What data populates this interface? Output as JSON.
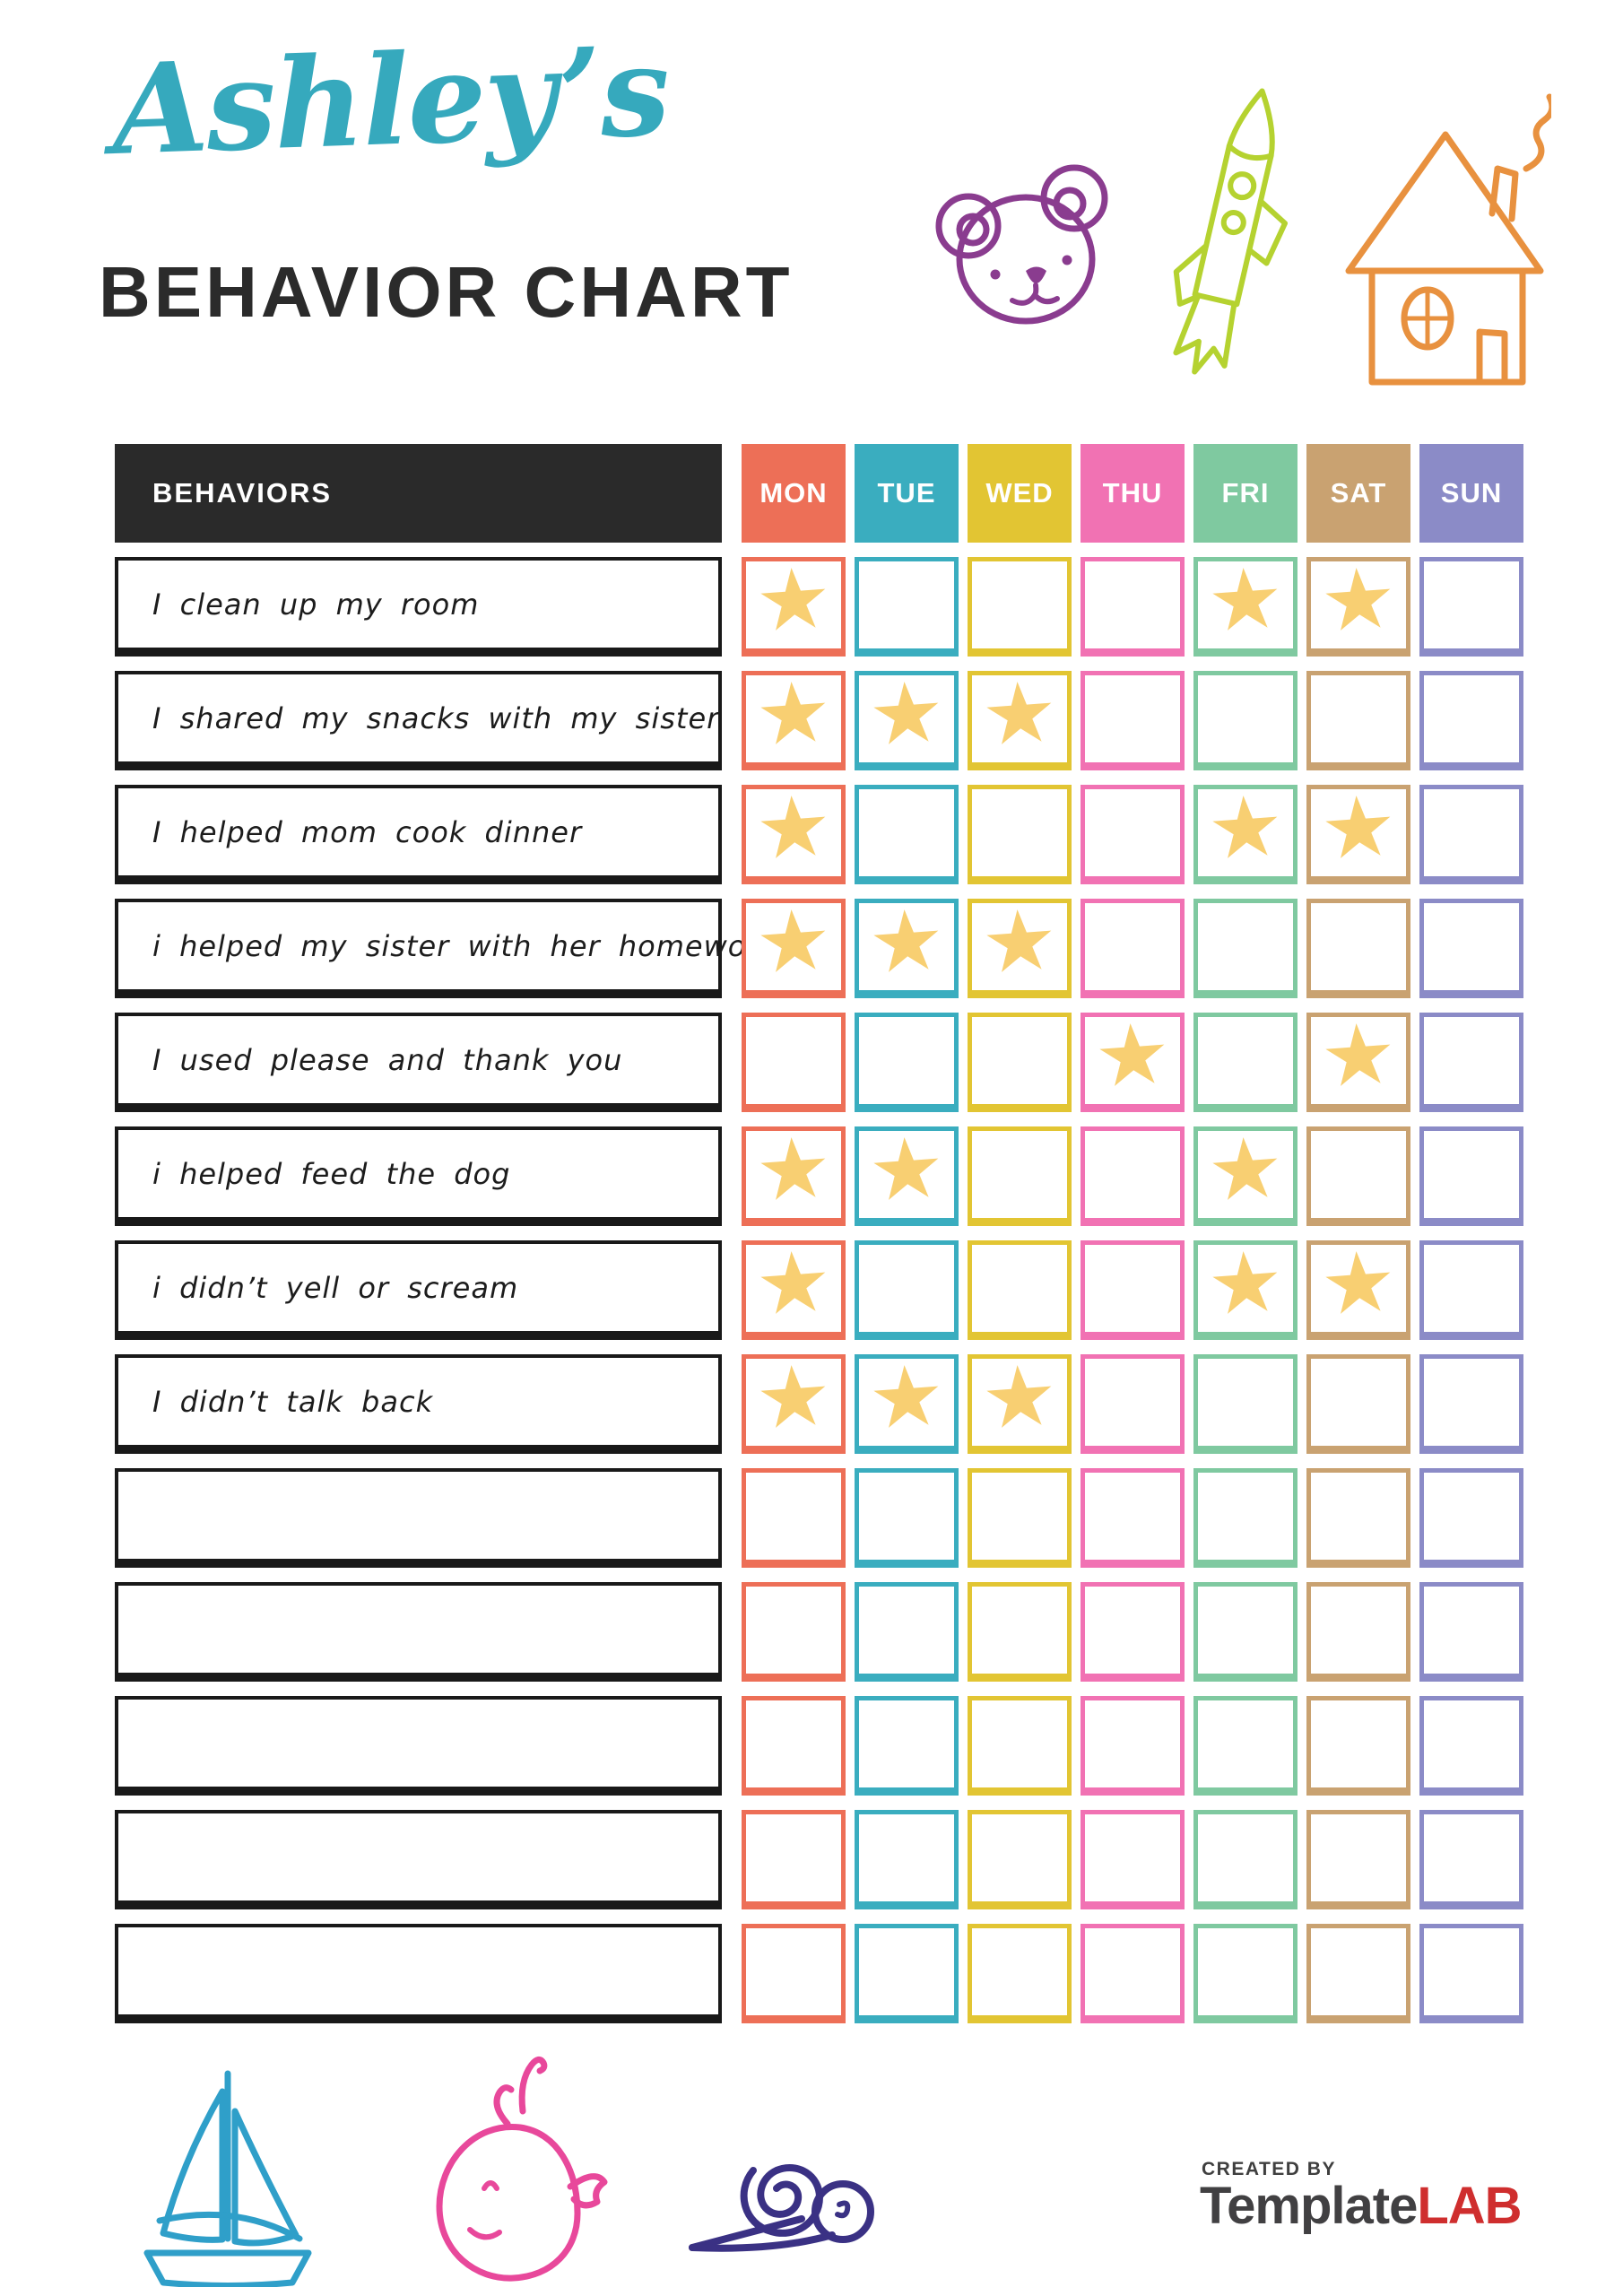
{
  "header": {
    "script_title": "Ashley’s",
    "script_color": "#36a9bd",
    "main_title": "BEHAVIOR CHART",
    "main_color": "#2b2b2b"
  },
  "chart": {
    "behaviors_header": "BEHAVIORS",
    "behaviors_header_bg": "#2a2a2a",
    "star_glyph": "★",
    "star_color": "#f8cf72",
    "days": [
      {
        "label": "MON",
        "color": "#ed6f57"
      },
      {
        "label": "TUE",
        "color": "#3aadbf"
      },
      {
        "label": "WED",
        "color": "#e2c533"
      },
      {
        "label": "THU",
        "color": "#f172b3"
      },
      {
        "label": "FRI",
        "color": "#7fc9a0"
      },
      {
        "label": "SAT",
        "color": "#c9a271"
      },
      {
        "label": "SUN",
        "color": "#8b8bc7"
      }
    ],
    "rows": [
      {
        "label": "I clean up my room",
        "stars": [
          1,
          0,
          0,
          0,
          1,
          1,
          0
        ]
      },
      {
        "label": "I shared my snacks with my sister",
        "stars": [
          1,
          1,
          1,
          0,
          0,
          0,
          0
        ]
      },
      {
        "label": "I helped mom cook dinner",
        "stars": [
          1,
          0,
          0,
          0,
          1,
          1,
          0
        ]
      },
      {
        "label": "i helped my sister with her homework",
        "stars": [
          1,
          1,
          1,
          0,
          0,
          0,
          0
        ]
      },
      {
        "label": "I used please and thank you",
        "stars": [
          0,
          0,
          0,
          1,
          0,
          1,
          0
        ]
      },
      {
        "label": "i helped feed the dog",
        "stars": [
          1,
          1,
          0,
          0,
          1,
          0,
          0
        ]
      },
      {
        "label": "i didn’t yell or scream",
        "stars": [
          1,
          0,
          0,
          0,
          1,
          1,
          0
        ]
      },
      {
        "label": "I didn’t talk back",
        "stars": [
          1,
          1,
          1,
          0,
          0,
          0,
          0
        ]
      },
      {
        "label": "",
        "stars": [
          0,
          0,
          0,
          0,
          0,
          0,
          0
        ]
      },
      {
        "label": "",
        "stars": [
          0,
          0,
          0,
          0,
          0,
          0,
          0
        ]
      },
      {
        "label": "",
        "stars": [
          0,
          0,
          0,
          0,
          0,
          0,
          0
        ]
      },
      {
        "label": "",
        "stars": [
          0,
          0,
          0,
          0,
          0,
          0,
          0
        ]
      },
      {
        "label": "",
        "stars": [
          0,
          0,
          0,
          0,
          0,
          0,
          0
        ]
      }
    ]
  },
  "doodles": {
    "top": [
      {
        "name": "bear-icon",
        "color": "#8a3c8f"
      },
      {
        "name": "rocket-icon",
        "color": "#b5d230"
      },
      {
        "name": "house-icon",
        "color": "#e8913f"
      }
    ],
    "bottom": [
      {
        "name": "sailboat-icon",
        "color": "#2f9fc9"
      },
      {
        "name": "whale-icon",
        "color": "#e8489b"
      },
      {
        "name": "snail-icon",
        "color": "#3a3184"
      }
    ]
  },
  "footer": {
    "created_by": "CREATED BY",
    "brand_template": "Template",
    "brand_lab": "LAB",
    "lab_color": "#cf2e2e"
  }
}
